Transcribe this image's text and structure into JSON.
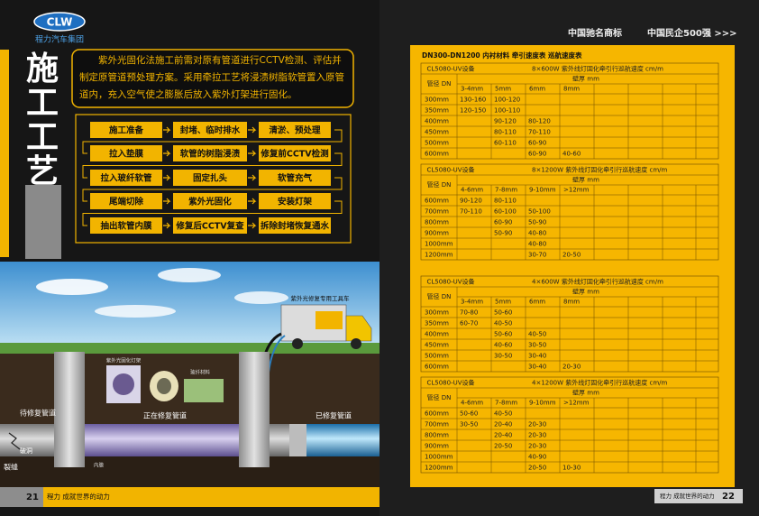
{
  "left_page": {
    "logo": {
      "mark": "CLW",
      "name": "程力汽车集团"
    },
    "title": "施工工艺",
    "intro": "紫外光固化法施工前需对原有管道进行CCTV检测、评估并制定原管道预处理方案。采用牵拉工艺将浸渍树脂软管置入原管道内，充入空气使之膨胀后放入紫外灯架进行固化。",
    "flow": {
      "rows": [
        [
          "施工准备",
          "封堵、临时排水",
          "清淤、预处理"
        ],
        [
          "拉入垫膜",
          "软管的树脂浸渍",
          "修复前CCTV检测"
        ],
        [
          "拉入玻纤软管",
          "固定扎头",
          "软管充气"
        ],
        [
          "尾端切除",
          "紫外光固化",
          "安装灯架"
        ],
        [
          "抽出软管内膜",
          "修复后CCTV复查",
          "拆除封堵恢复通水"
        ]
      ]
    },
    "illustration": {
      "labels": {
        "truck": "紫外光修复专用工具车",
        "pending": "待修复管道",
        "repairing": "正在修复管道",
        "repaired": "已修复管道",
        "crack": "裂缝",
        "hole": "破洞",
        "lamp": "紫外光固化灯架",
        "fiber": "玻纤材料",
        "liner": "内膜"
      }
    },
    "footer": {
      "page": "21",
      "slogan": "程力 成就世界的动力"
    }
  },
  "right_page": {
    "header": {
      "brand": "中国驰名商标",
      "rank": "中国民企500强 >>>"
    },
    "table_title": "DN300-DN1200 内衬材料 牵引速度表 巡航速度表",
    "sections": [
      {
        "equipment": "CL5080-UV设备",
        "spec": "8×600W 紫外线灯固化牵引行巡航速度 cm/m",
        "dn_label": "管径 DN",
        "wall_label": "壁厚 mm",
        "columns": [
          "3-4mm",
          "5mm",
          "6mm",
          "8mm"
        ],
        "rows": [
          {
            "dn": "300mm",
            "values": [
              "130-160",
              "100-120",
              null,
              null
            ]
          },
          {
            "dn": "350mm",
            "values": [
              "120-150",
              "100-110",
              null,
              null
            ]
          },
          {
            "dn": "400mm",
            "values": [
              null,
              "90-120",
              "80-120",
              null
            ]
          },
          {
            "dn": "450mm",
            "values": [
              null,
              "80-110",
              "70-110",
              null
            ]
          },
          {
            "dn": "500mm",
            "values": [
              null,
              "60-110",
              "60-90",
              null
            ]
          },
          {
            "dn": "600mm",
            "values": [
              null,
              null,
              "60-90",
              "40-60"
            ]
          }
        ]
      },
      {
        "equipment": "CL5080-UV设备",
        "spec": "8×1200W 紫外线灯固化牵引行巡航速度 cm/m",
        "dn_label": "管径 DN",
        "wall_label": "壁厚 mm",
        "columns": [
          "4-6mm",
          "7-8mm",
          "9-10mm",
          ">12mm"
        ],
        "rows": [
          {
            "dn": "600mm",
            "values": [
              "90-120",
              "80-110",
              null,
              null
            ]
          },
          {
            "dn": "700mm",
            "values": [
              "70-110",
              "60-100",
              "50-100",
              null
            ]
          },
          {
            "dn": "800mm",
            "values": [
              null,
              "60-90",
              "50-90",
              null
            ]
          },
          {
            "dn": "900mm",
            "values": [
              null,
              "50-90",
              "40-80",
              null
            ]
          },
          {
            "dn": "1000mm",
            "values": [
              null,
              null,
              "40-80",
              null
            ]
          },
          {
            "dn": "1200mm",
            "values": [
              null,
              null,
              "30-70",
              "20-50"
            ]
          }
        ]
      },
      {
        "equipment": "CL5080-UV设备",
        "spec": "4×600W 紫外线灯固化牵引行巡航速度 cm/m",
        "dn_label": "管径 DN",
        "wall_label": "壁厚 mm",
        "columns": [
          "3-4mm",
          "5mm",
          "6mm",
          "8mm"
        ],
        "rows": [
          {
            "dn": "300mm",
            "values": [
              "70-80",
              "50-60",
              null,
              null
            ]
          },
          {
            "dn": "350mm",
            "values": [
              "60-70",
              "40-50",
              null,
              null
            ]
          },
          {
            "dn": "400mm",
            "values": [
              null,
              "50-60",
              "40-50",
              null
            ]
          },
          {
            "dn": "450mm",
            "values": [
              null,
              "40-60",
              "30-50",
              null
            ]
          },
          {
            "dn": "500mm",
            "values": [
              null,
              "30-50",
              "30-40",
              null
            ]
          },
          {
            "dn": "600mm",
            "values": [
              null,
              null,
              "30-40",
              "20-30"
            ]
          }
        ]
      },
      {
        "equipment": "CL5080-UV设备",
        "spec": "4×1200W 紫外线灯固化牵引行巡航速度 cm/m",
        "dn_label": "管径 DN",
        "wall_label": "壁厚 mm",
        "columns": [
          "4-6mm",
          "7-8mm",
          "9-10mm",
          ">12mm"
        ],
        "rows": [
          {
            "dn": "600mm",
            "values": [
              "50-60",
              "40-50",
              null,
              null
            ]
          },
          {
            "dn": "700mm",
            "values": [
              "30-50",
              "20-40",
              "20-30",
              null
            ]
          },
          {
            "dn": "800mm",
            "values": [
              null,
              "20-40",
              "20-30",
              null
            ]
          },
          {
            "dn": "900mm",
            "values": [
              null,
              "20-50",
              "20-30",
              null
            ]
          },
          {
            "dn": "1000mm",
            "values": [
              null,
              null,
              "40-90",
              null
            ]
          },
          {
            "dn": "1200mm",
            "values": [
              null,
              null,
              "20-50",
              "10-30"
            ]
          }
        ]
      }
    ],
    "footer": {
      "slogan": "程力 成就世界的动力",
      "page": "22"
    }
  }
}
